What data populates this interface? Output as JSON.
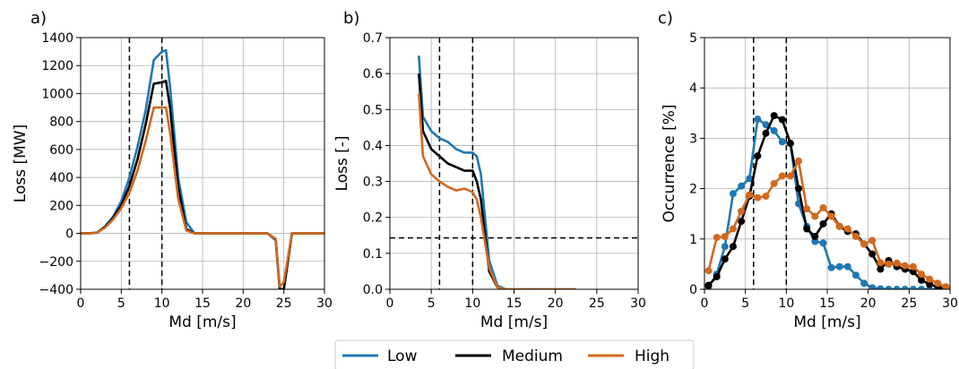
{
  "colors": {
    "Low": "#1f77b4",
    "Medium": "#000000",
    "High": "#d2691e"
  },
  "legend": {
    "items": [
      "Low",
      "Medium",
      "High"
    ],
    "placement": "bottom-center"
  },
  "chart_data": [
    {
      "panel_label": "a)",
      "type": "line",
      "xlabel": "Md [m/s]",
      "ylabel": "Loss [MW]",
      "xlim": [
        0,
        30
      ],
      "ylim": [
        -400,
        1400
      ],
      "xticks": [
        0,
        5,
        10,
        15,
        20,
        25,
        30
      ],
      "yticks": [
        -400,
        -200,
        0,
        200,
        400,
        600,
        800,
        1000,
        1200,
        1400
      ],
      "grid": true,
      "vlines": [
        6,
        10
      ],
      "hlines": [],
      "markers": false,
      "series": [
        {
          "name": "Low",
          "x": [
            0,
            1,
            2,
            3,
            4,
            5,
            6,
            7,
            8,
            9,
            10,
            10.5,
            11,
            12,
            13,
            14,
            15,
            16,
            17,
            18,
            19,
            20,
            21,
            22,
            23,
            24,
            24.5,
            25,
            26,
            27,
            28,
            29,
            30
          ],
          "y": [
            0,
            0,
            5,
            50,
            120,
            230,
            400,
            620,
            880,
            1240,
            1300,
            1310,
            1050,
            400,
            80,
            0,
            0,
            0,
            0,
            0,
            0,
            0,
            0,
            0,
            0,
            -50,
            -400,
            -400,
            0,
            0,
            0,
            0,
            0
          ]
        },
        {
          "name": "Medium",
          "x": [
            0,
            1,
            2,
            3,
            4,
            5,
            6,
            7,
            8,
            9,
            10,
            10.5,
            11,
            12,
            13,
            14,
            15,
            16,
            17,
            18,
            19,
            20,
            21,
            22,
            23,
            24,
            24.5,
            25,
            26,
            27,
            28,
            29,
            30
          ],
          "y": [
            0,
            0,
            5,
            45,
            110,
            200,
            340,
            530,
            780,
            1070,
            1080,
            1090,
            900,
            330,
            30,
            0,
            0,
            0,
            0,
            0,
            0,
            0,
            0,
            0,
            0,
            -40,
            -400,
            -400,
            0,
            0,
            0,
            0,
            0
          ]
        },
        {
          "name": "High",
          "x": [
            0,
            1,
            2,
            3,
            4,
            5,
            6,
            7,
            8,
            9,
            10,
            10.5,
            11,
            12,
            13,
            14,
            15,
            16,
            17,
            18,
            19,
            20,
            21,
            22,
            23,
            24,
            24.5,
            25,
            26,
            27,
            28,
            29,
            30
          ],
          "y": [
            0,
            0,
            5,
            40,
            100,
            180,
            290,
            450,
            660,
            900,
            900,
            900,
            720,
            250,
            20,
            0,
            0,
            0,
            0,
            0,
            0,
            0,
            0,
            0,
            0,
            -40,
            -380,
            -350,
            0,
            0,
            0,
            0,
            0
          ]
        }
      ]
    },
    {
      "panel_label": "b)",
      "type": "line",
      "xlabel": "Md [m/s]",
      "ylabel": "Loss [-]",
      "xlim": [
        0,
        30
      ],
      "ylim": [
        0,
        0.7
      ],
      "xticks": [
        0,
        5,
        10,
        15,
        20,
        25,
        30
      ],
      "yticks": [
        0.0,
        0.1,
        0.2,
        0.3,
        0.4,
        0.5,
        0.6,
        0.7
      ],
      "grid": true,
      "vlines": [
        6,
        10
      ],
      "hlines": [
        0.143
      ],
      "markers": false,
      "series": [
        {
          "name": "Low",
          "x": [
            3.5,
            4,
            5,
            6,
            7,
            8,
            9,
            10,
            10.5,
            11,
            12,
            13,
            14,
            15,
            16,
            17,
            18,
            19,
            20,
            21,
            22,
            22.5
          ],
          "y": [
            0.65,
            0.48,
            0.44,
            0.42,
            0.41,
            0.39,
            0.38,
            0.38,
            0.37,
            0.32,
            0.08,
            0.01,
            0,
            0,
            0,
            0,
            0,
            0,
            0,
            0,
            0,
            0
          ]
        },
        {
          "name": "Medium",
          "x": [
            3.5,
            4,
            5,
            6,
            7,
            8,
            9,
            10,
            10.5,
            11,
            12,
            13
          ],
          "y": [
            0.6,
            0.44,
            0.39,
            0.37,
            0.35,
            0.34,
            0.33,
            0.33,
            0.3,
            0.25,
            0.05,
            0.005
          ]
        },
        {
          "name": "High",
          "x": [
            3.5,
            4,
            5,
            6,
            7,
            8,
            9,
            10,
            10.5,
            11,
            12,
            13,
            14,
            15,
            16,
            17,
            18,
            19,
            20,
            21,
            22,
            22.5
          ],
          "y": [
            0.545,
            0.37,
            0.32,
            0.3,
            0.285,
            0.275,
            0.28,
            0.27,
            0.25,
            0.2,
            0.06,
            0.005,
            0,
            0,
            0,
            0,
            0,
            0,
            0,
            0,
            0,
            0
          ]
        }
      ]
    },
    {
      "panel_label": "c)",
      "type": "line",
      "xlabel": "Md [m/s]",
      "ylabel": "Occurrence [%]",
      "xlim": [
        0,
        30
      ],
      "ylim": [
        0,
        5
      ],
      "xticks": [
        0,
        5,
        10,
        15,
        20,
        25,
        30
      ],
      "yticks": [
        0,
        1,
        2,
        3,
        4,
        5
      ],
      "grid": true,
      "vlines": [
        6,
        10
      ],
      "hlines": [],
      "markers": true,
      "series": [
        {
          "name": "Low",
          "x": [
            0.5,
            1.5,
            2.5,
            3.5,
            4.5,
            5.5,
            6.5,
            7.5,
            8.5,
            9.5,
            10.5,
            11.5,
            12.5,
            13.5,
            14.5,
            15.5,
            16.5,
            17.5,
            18.5,
            19.5,
            20.5,
            21.5,
            22.5,
            23.5,
            24.5,
            25.5,
            26.5,
            27.5,
            28.5,
            29.5
          ],
          "y": [
            0.05,
            0.3,
            0.85,
            1.9,
            2.05,
            2.2,
            3.38,
            3.27,
            3.15,
            2.93,
            2.9,
            1.7,
            1.25,
            0.95,
            0.92,
            0.43,
            0.45,
            0.45,
            0.28,
            0.12,
            0.03,
            0.01,
            0.0,
            0.0,
            0.0,
            0.0,
            0.0,
            0.0,
            0.0,
            0.0
          ]
        },
        {
          "name": "Medium",
          "x": [
            0.5,
            1.5,
            2.5,
            3.5,
            4.5,
            5.5,
            6.5,
            7.5,
            8.5,
            9.5,
            10.5,
            11.5,
            12.5,
            13.5,
            14.5,
            15.5,
            16.5,
            17.5,
            18.5,
            19.5,
            20.5,
            21.5,
            22.5,
            23.5,
            24.5,
            25.5,
            26.5,
            27.5,
            28.5,
            29.5
          ],
          "y": [
            0.08,
            0.25,
            0.6,
            0.85,
            1.35,
            1.85,
            2.65,
            3.1,
            3.45,
            3.37,
            2.9,
            2.0,
            1.2,
            1.05,
            1.3,
            1.5,
            1.25,
            1.15,
            1.1,
            0.9,
            0.7,
            0.4,
            0.57,
            0.45,
            0.4,
            0.35,
            0.18,
            0.1,
            0.05,
            0.0
          ]
        },
        {
          "name": "High",
          "x": [
            0.5,
            1.5,
            2.5,
            3.5,
            4.5,
            5.5,
            6.5,
            7.5,
            8.5,
            9.5,
            10.5,
            11.5,
            12.5,
            13.5,
            14.5,
            15.5,
            16.5,
            17.5,
            18.5,
            19.5,
            20.5,
            21.5,
            22.5,
            23.5,
            24.5,
            25.5,
            26.5,
            27.5,
            28.5,
            29.5
          ],
          "y": [
            0.37,
            1.03,
            1.05,
            1.2,
            1.55,
            1.88,
            1.82,
            1.85,
            2.1,
            2.25,
            2.25,
            2.55,
            1.6,
            1.45,
            1.62,
            1.45,
            1.25,
            1.2,
            1.05,
            0.9,
            0.97,
            0.53,
            0.5,
            0.52,
            0.47,
            0.45,
            0.3,
            0.2,
            0.12,
            0.05
          ]
        }
      ]
    }
  ]
}
